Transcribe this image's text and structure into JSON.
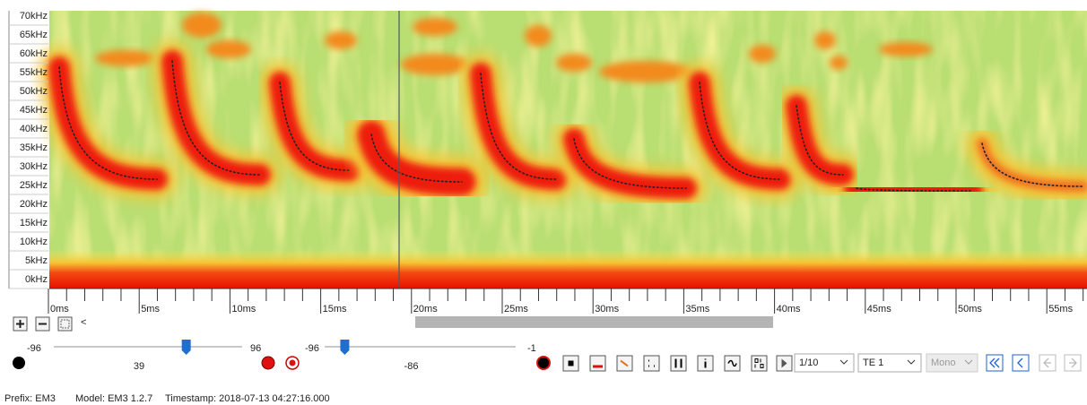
{
  "spectrogram": {
    "frequency_labels": [
      "70kHz",
      "65kHz",
      "60kHz",
      "55kHz",
      "50kHz",
      "45kHz",
      "40kHz",
      "35kHz",
      "30kHz",
      "25kHz",
      "20kHz",
      "15kHz",
      "10kHz",
      "5kHz",
      "0kHz"
    ],
    "time_labels": [
      "0ms",
      "5ms",
      "10ms",
      "15ms",
      "20ms",
      "25ms",
      "30ms",
      "35ms",
      "40ms",
      "45ms",
      "50ms",
      "55ms"
    ]
  },
  "controls": {
    "scroll_left": "<",
    "gain_slider": {
      "min": -96,
      "value": 39,
      "max": 96
    },
    "threshold_slider": {
      "min": -96,
      "value": -86,
      "max": -1
    },
    "playback_rate": "1/10",
    "channel": "TE 1",
    "mode": "Mono"
  },
  "status": {
    "prefix": "Prefix: EM3",
    "model": "Model: EM3 1.2.7",
    "timestamp": "Timestamp: 2018-07-13 04:27:16.000"
  }
}
